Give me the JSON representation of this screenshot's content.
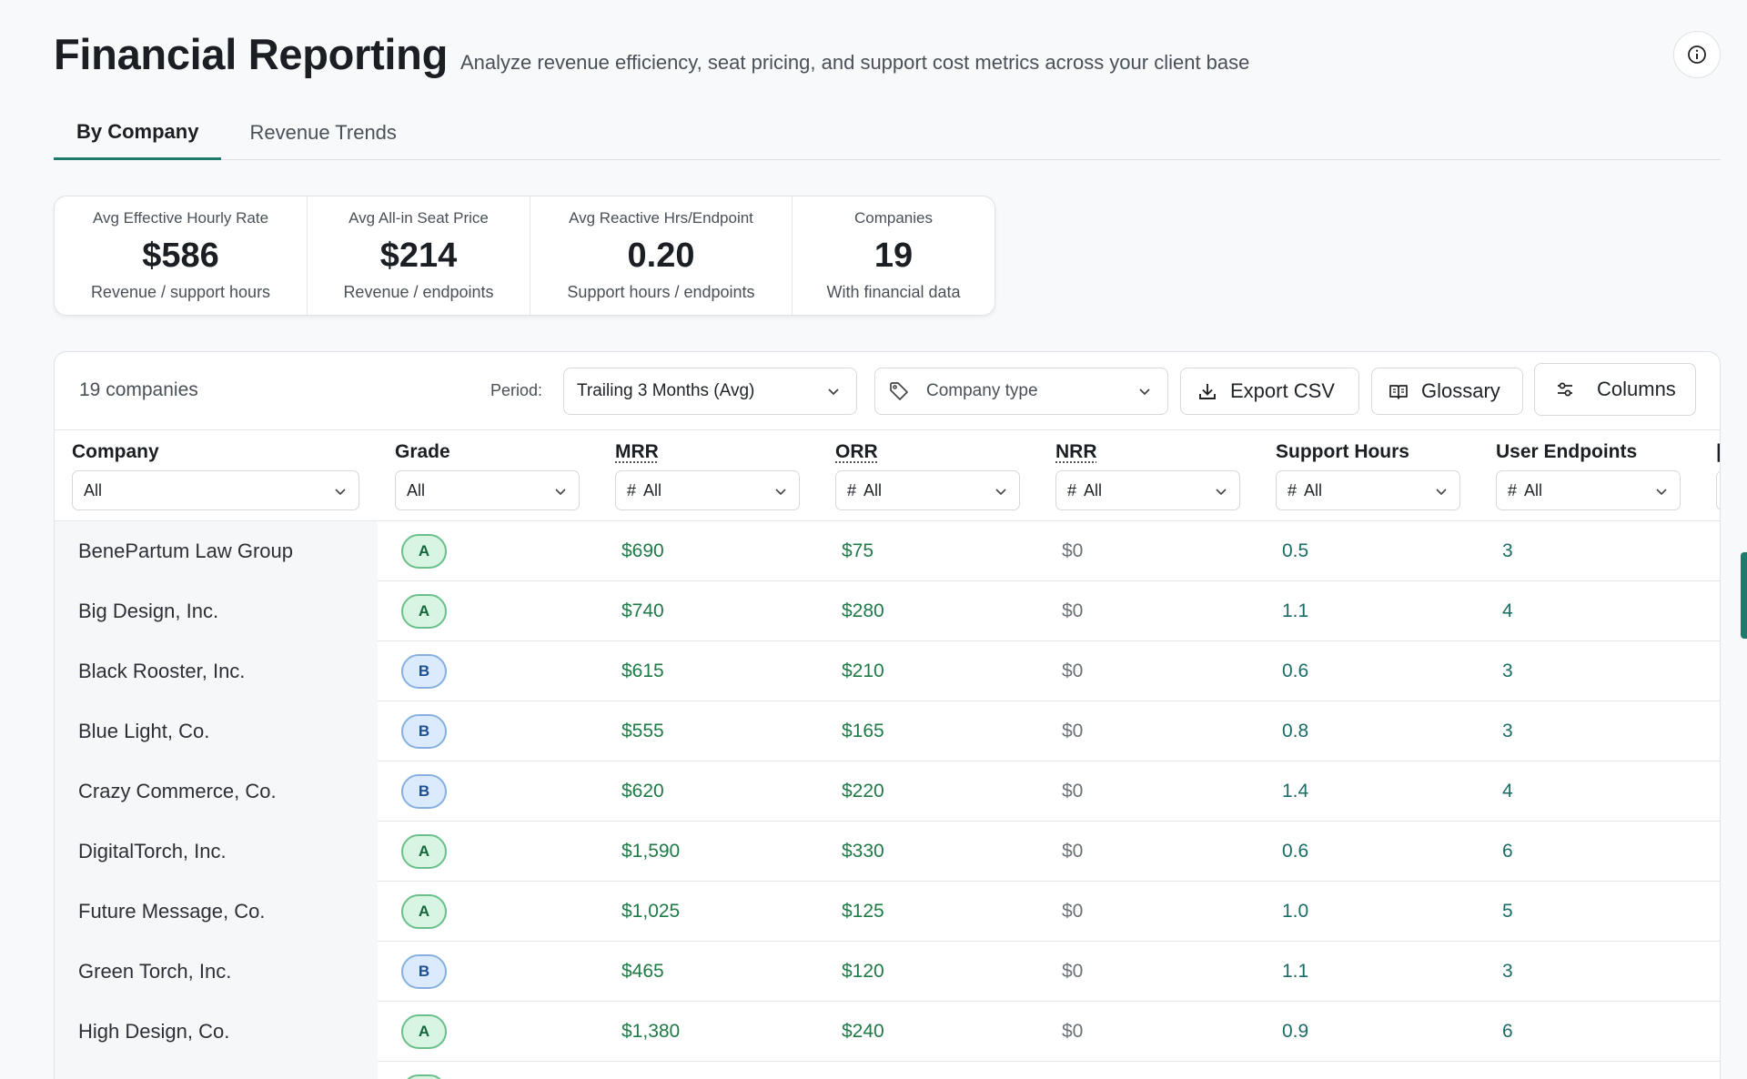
{
  "header": {
    "title": "Financial Reporting",
    "subtitle": "Analyze revenue efficiency, seat pricing, and support cost metrics across your client base"
  },
  "tabs": [
    {
      "label": "By Company",
      "active": true
    },
    {
      "label": "Revenue Trends",
      "active": false
    }
  ],
  "stats": [
    {
      "label": "Avg Effective Hourly Rate",
      "value": "$586",
      "sub": "Revenue / support hours"
    },
    {
      "label": "Avg All-in Seat Price",
      "value": "$214",
      "sub": "Revenue / endpoints"
    },
    {
      "label": "Avg Reactive Hrs/Endpoint",
      "value": "0.20",
      "sub": "Support hours / endpoints"
    },
    {
      "label": "Companies",
      "value": "19",
      "sub": "With financial data"
    }
  ],
  "toolbar": {
    "count": "19 companies",
    "period_label": "Period:",
    "period_value": "Trailing 3 Months (Avg)",
    "company_type_placeholder": "Company type",
    "export_label": "Export CSV",
    "glossary_label": "Glossary",
    "columns_label": "Columns"
  },
  "columns": [
    {
      "name": "Company",
      "filter": "All",
      "hash": false
    },
    {
      "name": "Grade",
      "filter": "All",
      "hash": false
    },
    {
      "name": "MRR",
      "filter": "All",
      "hash": true
    },
    {
      "name": "ORR",
      "filter": "All",
      "hash": true
    },
    {
      "name": "NRR",
      "filter": "All",
      "hash": true
    },
    {
      "name": "Support Hours",
      "filter": "All",
      "hash": true
    },
    {
      "name": "User Endpoints",
      "filter": "All",
      "hash": true
    }
  ],
  "rows": [
    {
      "company": "BenePartum Law Group",
      "grade": "A",
      "mrr": "$690",
      "orr": "$75",
      "nrr": "$0",
      "hours": "0.5",
      "endpoints": "3"
    },
    {
      "company": "Big Design, Inc.",
      "grade": "A",
      "mrr": "$740",
      "orr": "$280",
      "nrr": "$0",
      "hours": "1.1",
      "endpoints": "4"
    },
    {
      "company": "Black Rooster, Inc.",
      "grade": "B",
      "mrr": "$615",
      "orr": "$210",
      "nrr": "$0",
      "hours": "0.6",
      "endpoints": "3"
    },
    {
      "company": "Blue Light, Co.",
      "grade": "B",
      "mrr": "$555",
      "orr": "$165",
      "nrr": "$0",
      "hours": "0.8",
      "endpoints": "3"
    },
    {
      "company": "Crazy Commerce, Co.",
      "grade": "B",
      "mrr": "$620",
      "orr": "$220",
      "nrr": "$0",
      "hours": "1.4",
      "endpoints": "4"
    },
    {
      "company": "DigitalTorch, Inc.",
      "grade": "A",
      "mrr": "$1,590",
      "orr": "$330",
      "nrr": "$0",
      "hours": "0.6",
      "endpoints": "6"
    },
    {
      "company": "Future Message, Co.",
      "grade": "A",
      "mrr": "$1,025",
      "orr": "$125",
      "nrr": "$0",
      "hours": "1.0",
      "endpoints": "5"
    },
    {
      "company": "Green Torch, Inc.",
      "grade": "B",
      "mrr": "$465",
      "orr": "$120",
      "nrr": "$0",
      "hours": "1.1",
      "endpoints": "3"
    },
    {
      "company": "High Design, Co.",
      "grade": "A",
      "mrr": "$1,380",
      "orr": "$240",
      "nrr": "$0",
      "hours": "0.9",
      "endpoints": "6"
    }
  ],
  "colors": {
    "accent": "#1f7a6c",
    "grade_a": "#d7f5e2",
    "grade_b": "#dbeafc",
    "money_green": "#1e7a46"
  }
}
